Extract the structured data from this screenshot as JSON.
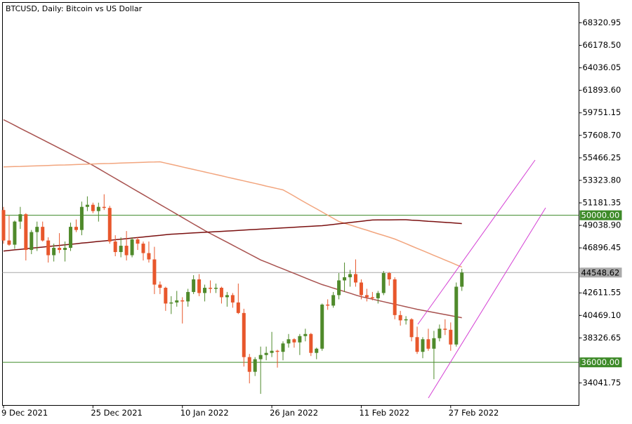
{
  "chart_data": {
    "type": "candlestick",
    "title": "BTCUSD, Daily:  Bitcoin vs US Dollar",
    "categories": [
      "9 Dec 2021",
      null,
      null,
      null,
      null,
      null,
      null,
      null,
      null,
      null,
      null,
      null,
      null,
      null,
      null,
      null,
      "25 Dec 2021",
      null,
      null,
      null,
      null,
      null,
      null,
      null,
      null,
      null,
      null,
      null,
      null,
      null,
      null,
      null,
      "10 Jan 2022",
      null,
      null,
      null,
      null,
      null,
      null,
      null,
      null,
      null,
      null,
      null,
      null,
      null,
      null,
      null,
      "26 Jan 2022",
      null,
      null,
      null,
      null,
      null,
      null,
      null,
      null,
      null,
      null,
      null,
      null,
      null,
      null,
      null,
      "11 Feb 2022",
      null,
      null,
      null,
      null,
      null,
      null,
      null,
      null,
      null,
      null,
      null,
      null,
      null,
      null,
      null,
      "27 Feb 2022",
      null,
      null
    ],
    "open": [
      50500,
      47600,
      47200,
      49400,
      50100,
      46700,
      48400,
      48900,
      47600,
      46200,
      46900,
      46700,
      46900,
      48900,
      48600,
      50800,
      51000,
      50400,
      50800,
      50700,
      47500,
      46500,
      47100,
      46200,
      47700,
      47300,
      46400,
      45800,
      43400,
      43100,
      41600,
      41700,
      41900,
      41800,
      42700,
      43900,
      42600,
      43100,
      43000,
      43100,
      42200,
      42400,
      41700,
      40700,
      36500,
      35100,
      36300,
      36700,
      36900,
      37100,
      37000,
      37800,
      38200,
      37900,
      38500,
      38700,
      36900,
      37300,
      41500,
      41400,
      42400,
      43800,
      44100,
      44400,
      43600,
      42400,
      42200,
      42100,
      42600,
      44500,
      43900,
      40500,
      40000,
      40100,
      38400,
      37000,
      38200,
      37300,
      38300,
      39200,
      39100,
      37700,
      43200
    ],
    "high": [
      50800,
      50000,
      49500,
      50800,
      50200,
      48600,
      49400,
      49400,
      47900,
      47300,
      48300,
      47500,
      49300,
      49600,
      51300,
      51800,
      51200,
      51200,
      52000,
      50900,
      48100,
      47900,
      48500,
      47900,
      47900,
      47500,
      47500,
      47000,
      43700,
      43200,
      42300,
      42800,
      42200,
      43000,
      44300,
      44400,
      43400,
      43800,
      43500,
      43200,
      42700,
      42600,
      43500,
      41100,
      36800,
      36500,
      37500,
      37500,
      38900,
      37200,
      38000,
      38700,
      38300,
      38700,
      39200,
      38800,
      37400,
      41600,
      42000,
      42700,
      44500,
      45500,
      44800,
      45800,
      43900,
      43000,
      42700,
      42800,
      44700,
      44600,
      44100,
      40900,
      40400,
      40200,
      39400,
      38400,
      39200,
      39000,
      39600,
      40100,
      39800,
      43600,
      44900
    ],
    "low": [
      47300,
      47100,
      46800,
      48700,
      45700,
      46300,
      46600,
      47500,
      45500,
      45600,
      46400,
      45600,
      46600,
      48400,
      48100,
      50400,
      50200,
      49400,
      50500,
      47300,
      46100,
      46000,
      45700,
      46000,
      46700,
      45700,
      45500,
      42500,
      42500,
      40900,
      40600,
      41300,
      39700,
      41300,
      42500,
      42300,
      41800,
      42600,
      42600,
      41600,
      41300,
      41200,
      40600,
      35600,
      34000,
      34700,
      33000,
      36200,
      36500,
      35500,
      36200,
      37400,
      37400,
      36700,
      38000,
      36600,
      36300,
      37100,
      41000,
      41200,
      42000,
      42700,
      43200,
      43200,
      42000,
      41800,
      41900,
      41600,
      42400,
      43300,
      40100,
      39500,
      39600,
      38000,
      36800,
      36400,
      37100,
      34400,
      38000,
      38600,
      37100,
      37500,
      42800
    ],
    "close": [
      47600,
      47200,
      49400,
      50100,
      46700,
      48400,
      48900,
      47600,
      46200,
      46900,
      46700,
      46900,
      48900,
      48600,
      50800,
      51000,
      50400,
      50800,
      50700,
      47500,
      46500,
      47100,
      46200,
      47700,
      47300,
      46400,
      45800,
      43400,
      43100,
      41600,
      41700,
      41900,
      41800,
      42700,
      43900,
      42600,
      43100,
      43000,
      43100,
      42200,
      42400,
      41700,
      40700,
      36500,
      35100,
      36300,
      36700,
      36900,
      37100,
      37000,
      37800,
      38200,
      37900,
      38500,
      38700,
      36900,
      37300,
      41500,
      41400,
      42400,
      43800,
      44100,
      44400,
      43600,
      42400,
      42200,
      42100,
      42600,
      44500,
      43900,
      40500,
      40000,
      40100,
      38400,
      37000,
      38200,
      37300,
      38300,
      39200,
      39100,
      37700,
      43200,
      44548.62
    ],
    "up_color": "#4f8a2b",
    "down_color": "#e8572c",
    "indicators": [
      {
        "color": "#a8524f",
        "values": [
          59100,
          58830,
          58560,
          58280,
          58010,
          57740,
          57470,
          57200,
          56920,
          56650,
          56380,
          56110,
          55840,
          55560,
          55290,
          55020,
          54750,
          54440,
          54130,
          53820,
          53510,
          53200,
          52890,
          52580,
          52270,
          51960,
          51650,
          51340,
          51030,
          50720,
          50410,
          50100,
          49790,
          49480,
          49170,
          48860,
          48550,
          48270,
          47990,
          47710,
          47430,
          47150,
          46870,
          46590,
          46310,
          46030,
          45750,
          45540,
          45320,
          45110,
          44890,
          44680,
          44470,
          44250,
          44040,
          43820,
          43610,
          43400,
          43240,
          43070,
          42910,
          42740,
          42580,
          42410,
          42250,
          42130,
          42010,
          41890,
          41770,
          41650,
          41530,
          41410,
          41290,
          41170,
          41050,
          40950,
          40850,
          40750,
          40650,
          40550,
          40450,
          40350,
          40250
        ]
      },
      {
        "color": "#f2a57e",
        "values": [
          54600,
          54620,
          54640,
          54650,
          54670,
          54690,
          54710,
          54720,
          54740,
          54760,
          54780,
          54790,
          54810,
          54830,
          54850,
          54860,
          54880,
          54900,
          54920,
          54930,
          54950,
          54970,
          54990,
          55000,
          55020,
          55040,
          55060,
          55070,
          55090,
          54970,
          54850,
          54730,
          54600,
          54480,
          54360,
          54240,
          54120,
          54000,
          53880,
          53760,
          53630,
          53510,
          53390,
          53270,
          53150,
          53030,
          52910,
          52780,
          52660,
          52540,
          52420,
          52120,
          51820,
          51510,
          51210,
          50910,
          50610,
          50310,
          50010,
          49710,
          49410,
          49240,
          49080,
          48910,
          48740,
          48580,
          48410,
          48240,
          48080,
          47910,
          47740,
          47520,
          47300,
          47070,
          46850,
          46630,
          46410,
          46180,
          45960,
          45740,
          45520,
          45290,
          45070
        ]
      },
      {
        "color": "#7a0f0f",
        "values": [
          46600,
          46650,
          46710,
          46760,
          46810,
          46870,
          46920,
          46970,
          47030,
          47080,
          47130,
          47190,
          47240,
          47290,
          47350,
          47400,
          47450,
          47510,
          47560,
          47610,
          47670,
          47720,
          47770,
          47830,
          47880,
          47930,
          47990,
          48040,
          48090,
          48150,
          48200,
          48230,
          48260,
          48290,
          48320,
          48350,
          48380,
          48410,
          48440,
          48470,
          48500,
          48530,
          48560,
          48590,
          48620,
          48650,
          48680,
          48710,
          48740,
          48770,
          48800,
          48830,
          48860,
          48890,
          48920,
          48950,
          48980,
          49010,
          49070,
          49130,
          49190,
          49250,
          49310,
          49370,
          49430,
          49490,
          49550,
          49555,
          49560,
          49565,
          49570,
          49575,
          49580,
          49540,
          49510,
          49470,
          49430,
          49400,
          49360,
          49320,
          49290,
          49250,
          49210
        ]
      }
    ],
    "levels": [
      {
        "value": 50000,
        "label": "50000.00",
        "color": "#3d8a28"
      },
      {
        "value": 44548.62,
        "label": "44548.62",
        "color": "#a9a9a9"
      },
      {
        "value": 36000,
        "label": "36000.00",
        "color": "#3d8a28"
      }
    ],
    "ylim": [
      31903,
      70258
    ],
    "yticks": [
      {
        "value": 68320.95,
        "label": "68320.95"
      },
      {
        "value": 66178.5,
        "label": "66178.50"
      },
      {
        "value": 64036.05,
        "label": "64036.05"
      },
      {
        "value": 61893.6,
        "label": "61893.60"
      },
      {
        "value": 59751.15,
        "label": "59751.15"
      },
      {
        "value": 57608.7,
        "label": "57608.70"
      },
      {
        "value": 55466.25,
        "label": "55466.25"
      },
      {
        "value": 53323.8,
        "label": "53323.80"
      },
      {
        "value": 51181.35,
        "label": "51181.35"
      },
      {
        "value": 49038.9,
        "label": "49038.90"
      },
      {
        "value": 46896.45,
        "label": "46896.45"
      },
      {
        "value": 42611.55,
        "label": "42611.55"
      },
      {
        "value": 40469.1,
        "label": "40469.10"
      },
      {
        "value": 38326.65,
        "label": "38326.65"
      },
      {
        "value": 34041.75,
        "label": "34041.75"
      }
    ]
  }
}
